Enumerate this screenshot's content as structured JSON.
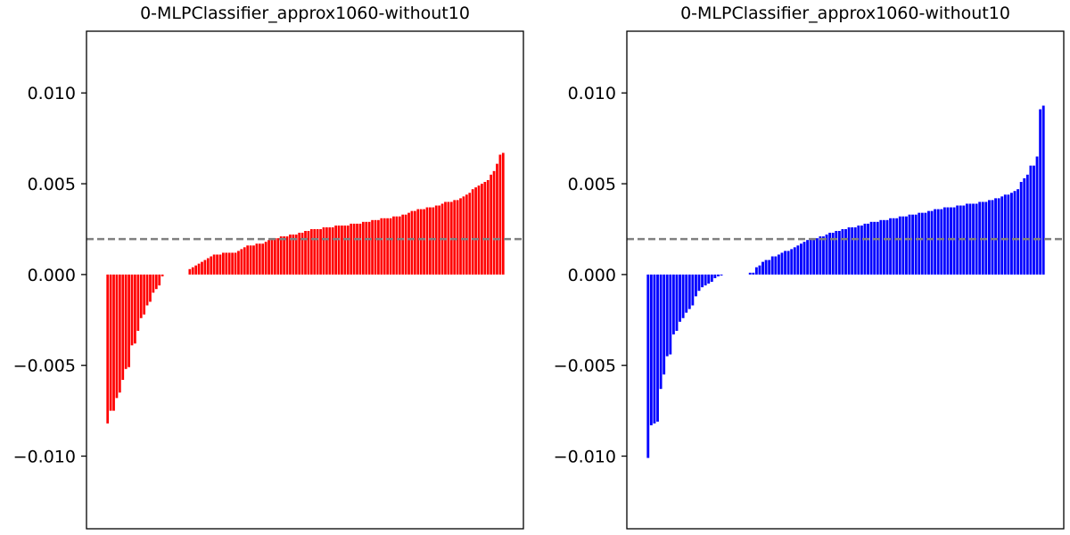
{
  "chart_data": [
    {
      "type": "bar",
      "title": "0-MLPClassifier_approx1060-without10",
      "xlabel": "",
      "ylabel": "",
      "ylim": [
        -0.014,
        0.0134
      ],
      "yticks": [
        -0.01,
        -0.005,
        0.0,
        0.005,
        0.01
      ],
      "ytick_labels": [
        "−0.010",
        "−0.005",
        "0.000",
        "0.005",
        "0.010"
      ],
      "bar_color": "#ff0000",
      "reference_line": {
        "y": 0.00195,
        "color": "#808080",
        "style": "dashed"
      },
      "series": [
        {
          "values": [
            -0.0082,
            -0.0075,
            -0.0075,
            -0.0068,
            -0.0065,
            -0.0058,
            -0.0052,
            -0.0051,
            -0.0039,
            -0.0038,
            -0.0031,
            -0.0024,
            -0.0022,
            -0.0017,
            -0.0015,
            -0.001,
            -0.0008,
            -0.0006,
            -0.0001,
            0.0,
            0.0,
            0.0,
            0.0,
            0.0,
            0.0,
            0.0,
            0.0,
            0.0003,
            0.0004,
            0.0005,
            0.0006,
            0.0007,
            0.0008,
            0.0009,
            0.001,
            0.0011,
            0.0011,
            0.0011,
            0.0012,
            0.0012,
            0.0012,
            0.0012,
            0.0012,
            0.0013,
            0.0014,
            0.0015,
            0.0016,
            0.0016,
            0.0016,
            0.0017,
            0.0017,
            0.0017,
            0.0018,
            0.0019,
            0.002,
            0.002,
            0.002,
            0.0021,
            0.0021,
            0.0021,
            0.0022,
            0.0022,
            0.0022,
            0.0023,
            0.0023,
            0.0024,
            0.0024,
            0.0025,
            0.0025,
            0.0025,
            0.0025,
            0.0026,
            0.0026,
            0.0026,
            0.0026,
            0.0027,
            0.0027,
            0.0027,
            0.0027,
            0.0027,
            0.0028,
            0.0028,
            0.0028,
            0.0028,
            0.0029,
            0.0029,
            0.0029,
            0.003,
            0.003,
            0.003,
            0.0031,
            0.0031,
            0.0031,
            0.0031,
            0.0032,
            0.0032,
            0.0032,
            0.0033,
            0.0033,
            0.0034,
            0.0035,
            0.0035,
            0.0036,
            0.0036,
            0.0036,
            0.0037,
            0.0037,
            0.0037,
            0.0038,
            0.0038,
            0.0039,
            0.004,
            0.004,
            0.004,
            0.0041,
            0.0041,
            0.0042,
            0.0043,
            0.0044,
            0.0045,
            0.0047,
            0.0048,
            0.0049,
            0.005,
            0.0051,
            0.0052,
            0.0055,
            0.0057,
            0.0061,
            0.0066,
            0.0067
          ]
        }
      ]
    },
    {
      "type": "bar",
      "title": "0-MLPClassifier_approx1060-without10",
      "xlabel": "",
      "ylabel": "",
      "ylim": [
        -0.014,
        0.0134
      ],
      "yticks": [
        -0.01,
        -0.005,
        0.0,
        0.005,
        0.01
      ],
      "ytick_labels": [
        "−0.010",
        "−0.005",
        "0.000",
        "0.005",
        "0.010"
      ],
      "bar_color": "#0000ff",
      "reference_line": {
        "y": 0.00195,
        "color": "#808080",
        "style": "dashed"
      },
      "series": [
        {
          "values": [
            -0.0101,
            -0.0083,
            -0.0082,
            -0.0081,
            -0.0063,
            -0.0055,
            -0.0045,
            -0.0044,
            -0.0033,
            -0.0031,
            -0.0026,
            -0.0024,
            -0.0021,
            -0.0019,
            -0.0017,
            -0.0012,
            -0.0009,
            -0.0007,
            -0.0006,
            -0.0005,
            -0.0004,
            -0.0002,
            -0.0001,
            -5e-05,
            0.0,
            0.0,
            0.0,
            0.0,
            0.0,
            0.0,
            0.0,
            0.0,
            0.0001,
            0.0001,
            0.0004,
            0.0005,
            0.0007,
            0.0008,
            0.0008,
            0.001,
            0.001,
            0.0011,
            0.0012,
            0.0013,
            0.0013,
            0.0014,
            0.0015,
            0.0016,
            0.0017,
            0.0018,
            0.0019,
            0.002,
            0.002,
            0.002,
            0.0021,
            0.0021,
            0.0022,
            0.0023,
            0.0023,
            0.0024,
            0.0024,
            0.0025,
            0.0025,
            0.0026,
            0.0026,
            0.0026,
            0.0027,
            0.0027,
            0.0028,
            0.0028,
            0.0029,
            0.0029,
            0.0029,
            0.003,
            0.003,
            0.003,
            0.0031,
            0.0031,
            0.0031,
            0.0032,
            0.0032,
            0.0032,
            0.0033,
            0.0033,
            0.0033,
            0.0034,
            0.0034,
            0.0034,
            0.0035,
            0.0035,
            0.0036,
            0.0036,
            0.0036,
            0.0037,
            0.0037,
            0.0037,
            0.0037,
            0.0038,
            0.0038,
            0.0038,
            0.0039,
            0.0039,
            0.0039,
            0.0039,
            0.004,
            0.004,
            0.004,
            0.0041,
            0.0041,
            0.0042,
            0.0042,
            0.0043,
            0.0044,
            0.0044,
            0.0045,
            0.0046,
            0.0047,
            0.0051,
            0.0053,
            0.0055,
            0.006,
            0.006,
            0.0065,
            0.0091,
            0.0093
          ]
        }
      ]
    }
  ]
}
